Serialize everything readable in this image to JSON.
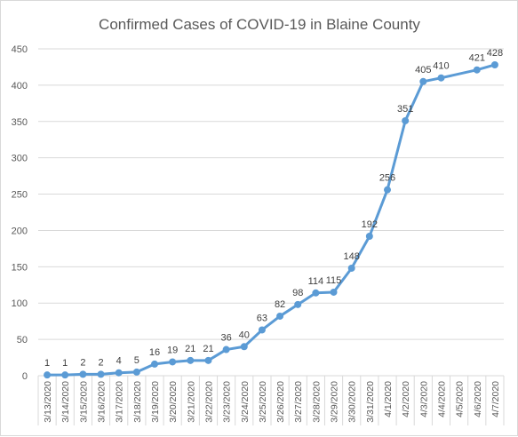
{
  "chart_data": {
    "type": "line",
    "title": "Confirmed Cases of COVID-19 in Blaine County",
    "xlabel": "",
    "ylabel": "",
    "ylim": [
      0,
      450
    ],
    "yticks": [
      0,
      50,
      100,
      150,
      200,
      250,
      300,
      350,
      400,
      450
    ],
    "grid": true,
    "legend": "none",
    "line_color": "#5b9bd5",
    "x": [
      "3/13/2020",
      "3/14/2020",
      "3/15/2020",
      "3/16/2020",
      "3/17/2020",
      "3/18/2020",
      "3/19/2020",
      "3/20/2020",
      "3/21/2020",
      "3/22/2020",
      "3/23/2020",
      "3/24/2020",
      "3/25/2020",
      "3/26/2020",
      "3/27/2020",
      "3/28/2020",
      "3/29/2020",
      "3/30/2020",
      "3/31/2020",
      "4/1/2020",
      "4/2/2020",
      "4/3/2020",
      "4/4/2020",
      "4/5/2020",
      "4/6/2020",
      "4/7/2020"
    ],
    "series": [
      {
        "values": [
          1,
          1,
          2,
          2,
          4,
          5,
          16,
          19,
          21,
          21,
          36,
          40,
          63,
          82,
          98,
          114,
          115,
          148,
          192,
          256,
          351,
          405,
          410,
          null,
          421,
          428
        ]
      }
    ]
  }
}
